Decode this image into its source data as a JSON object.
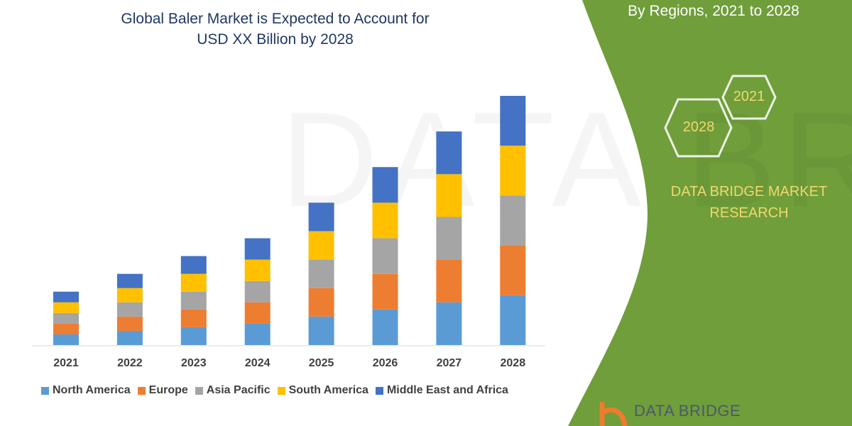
{
  "title_line1": "Global Baler Market is Expected to Account for",
  "title_line2": "USD XX Billion by 2028",
  "side_panel": {
    "subtitle": "By Regions, 2021 to 2028",
    "hex_year_start": "2021",
    "hex_year_end": "2028",
    "brand_line1": "DATA BRIDGE MARKET",
    "brand_line2": "RESEARCH",
    "logo_text": "DATA BRIDGE",
    "panel_color": "#6f9e3a",
    "accent_text_color": "#f0d870"
  },
  "chart_data": {
    "type": "bar",
    "stacked": true,
    "categories": [
      "2021",
      "2022",
      "2023",
      "2024",
      "2025",
      "2026",
      "2027",
      "2028"
    ],
    "series": [
      {
        "name": "North America",
        "color": "#5b9bd5",
        "values": [
          15,
          20,
          25,
          30,
          40,
          50,
          60,
          70
        ]
      },
      {
        "name": "Europe",
        "color": "#ed7d31",
        "values": [
          15,
          20,
          25,
          30,
          40,
          50,
          60,
          70
        ]
      },
      {
        "name": "Asia Pacific",
        "color": "#a5a5a5",
        "values": [
          15,
          20,
          25,
          30,
          40,
          50,
          60,
          70
        ]
      },
      {
        "name": "South America",
        "color": "#ffc000",
        "values": [
          15,
          20,
          25,
          30,
          40,
          50,
          60,
          70
        ]
      },
      {
        "name": "Middle East and Africa",
        "color": "#4472c4",
        "values": [
          15,
          20,
          25,
          30,
          40,
          50,
          60,
          70
        ]
      }
    ],
    "ylim": [
      0,
      350
    ],
    "y_axis_visible": false,
    "grid": false,
    "legend_position": "bottom"
  }
}
